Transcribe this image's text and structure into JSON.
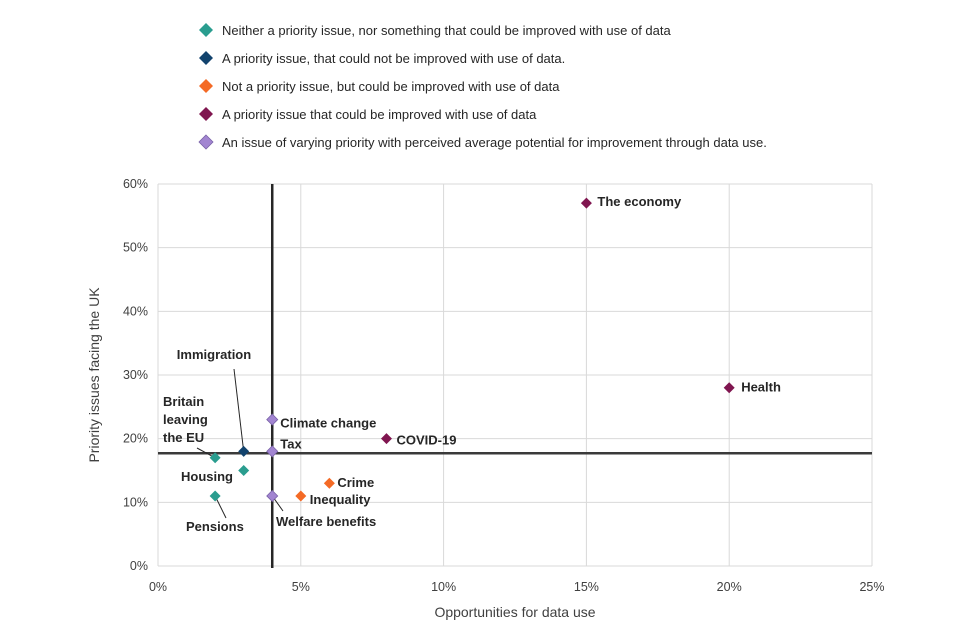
{
  "chart_data": {
    "type": "scatter",
    "title": "",
    "xlabel": "Opportunities for data use",
    "ylabel": "Priority issues facing the UK",
    "xlim": [
      0,
      25
    ],
    "ylim": [
      0,
      60
    ],
    "x_ticks": [
      0,
      5,
      10,
      15,
      20,
      25
    ],
    "y_ticks": [
      0,
      10,
      20,
      30,
      40,
      50,
      60
    ],
    "x_tick_labels": [
      "0%",
      "5%",
      "10%",
      "15%",
      "20%",
      "25%"
    ],
    "y_tick_labels": [
      "0%",
      "10%",
      "20%",
      "30%",
      "40%",
      "50%",
      "60%"
    ],
    "grid": true,
    "legend_position": "top",
    "reference_lines": {
      "x_average": 4,
      "y_average": 17.7
    },
    "categories": [
      {
        "key": "neither",
        "label": "Neither a priority issue, nor something that could be improved with use of data",
        "color": "#2a9d8f"
      },
      {
        "key": "priority_no_data",
        "label": "A priority issue, that could not be improved with use of data.",
        "color": "#12436d"
      },
      {
        "key": "not_priority_data",
        "label": "Not a priority issue, but could be improved with use of data",
        "color": "#f46a25"
      },
      {
        "key": "priority_data",
        "label": "A priority issue that could be improved with use of data",
        "color": "#801650"
      },
      {
        "key": "varying",
        "label": "An issue of varying priority with perceived average potential for improvement through data use.",
        "color": "#a285d1"
      }
    ],
    "points": [
      {
        "label": "The economy",
        "x": 15,
        "y": 57,
        "category": "priority_data"
      },
      {
        "label": "Health",
        "x": 20,
        "y": 28,
        "category": "priority_data"
      },
      {
        "label": "COVID-19",
        "x": 8,
        "y": 20,
        "category": "priority_data"
      },
      {
        "label": "Immigration",
        "x": 3,
        "y": 18,
        "category": "priority_no_data"
      },
      {
        "label": "Climate change",
        "x": 4,
        "y": 23,
        "category": "varying"
      },
      {
        "label": "Tax",
        "x": 4,
        "y": 18,
        "category": "varying"
      },
      {
        "label": "Welfare benefits",
        "x": 4,
        "y": 11,
        "category": "varying"
      },
      {
        "label": "Britain leaving the EU",
        "x": 2,
        "y": 17,
        "category": "neither"
      },
      {
        "label": "Housing",
        "x": 3,
        "y": 15,
        "category": "neither"
      },
      {
        "label": "Pensions",
        "x": 2,
        "y": 11,
        "category": "neither"
      },
      {
        "label": "Crime",
        "x": 6,
        "y": 13,
        "category": "not_priority_data"
      },
      {
        "label": "Inequality",
        "x": 5,
        "y": 11,
        "category": "not_priority_data"
      }
    ]
  }
}
